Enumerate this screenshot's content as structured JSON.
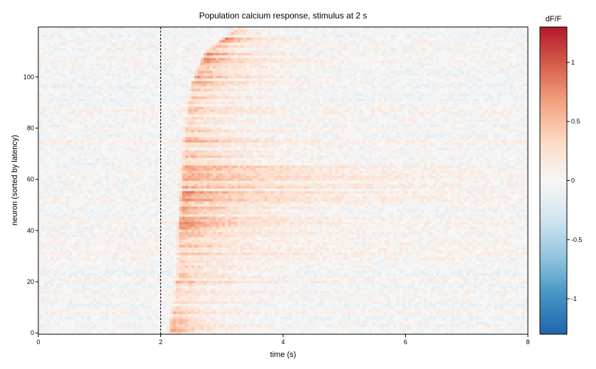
{
  "chart_data": {
    "type": "heatmap",
    "title": "Population calcium response, stimulus at 2 s",
    "xlabel": "time (s)",
    "ylabel": "neuron (sorted by latency)",
    "xlim": [
      0,
      8
    ],
    "ylim": [
      -0.5,
      119.5
    ],
    "x_ticks": [
      0,
      2,
      4,
      6,
      8
    ],
    "y_ticks": [
      0,
      20,
      40,
      60,
      80,
      100
    ],
    "n_neurons": 120,
    "stimulus_time": 2,
    "colorbar": {
      "title": "dF/F",
      "vmin": -1.3,
      "vmax": 1.3,
      "ticks": [
        -1,
        -0.5,
        0,
        0.5,
        1
      ],
      "tick_labels": [
        "-1",
        "-0.5",
        "0",
        "0.5",
        "1"
      ],
      "colormap": "RdBu_r",
      "colors": [
        "#2166ac",
        "#4393c3",
        "#92c5de",
        "#d1e5f0",
        "#f7f7f7",
        "#fddbc7",
        "#f4a582",
        "#d6604d",
        "#b2182b"
      ]
    },
    "response_onset_latency": {
      "neurons": [
        0,
        10,
        20,
        30,
        40,
        50,
        60,
        70,
        80,
        90,
        100,
        110,
        119
      ],
      "onset_time_s": [
        2.1,
        2.15,
        2.2,
        2.25,
        2.25,
        2.28,
        2.3,
        2.32,
        2.35,
        2.4,
        2.5,
        2.7,
        3.2
      ]
    },
    "response_peak": {
      "neurons": [
        0,
        10,
        20,
        30,
        40,
        50,
        60,
        70,
        80,
        90,
        100,
        110,
        119
      ],
      "peak_dff": [
        0.9,
        0.4,
        0.5,
        0.4,
        0.7,
        0.8,
        0.6,
        0.6,
        0.5,
        0.4,
        0.7,
        0.9,
        0.6
      ]
    },
    "decay_end_time_s": [
      3.3,
      3.7,
      3.9,
      4.6,
      4.8,
      5.0,
      7.6,
      4.8,
      4.0,
      4.0,
      4.5,
      4.0,
      3.8
    ]
  }
}
